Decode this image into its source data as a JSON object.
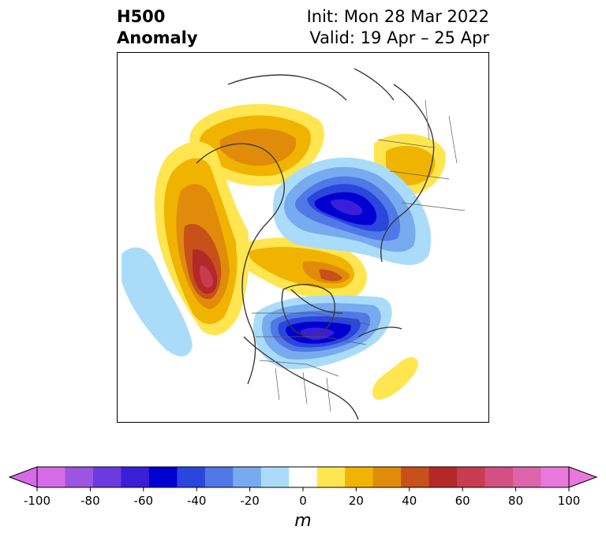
{
  "title": {
    "variable": "H500",
    "field": "Anomaly",
    "init": "Init: Mon 28 Mar 2022",
    "valid": "Valid: 19 Apr – 25 Apr"
  },
  "colorbar": {
    "unit": "m",
    "ticks": [
      "-100",
      "-80",
      "-60",
      "-40",
      "-20",
      "0",
      "20",
      "40",
      "60",
      "80",
      "100"
    ],
    "colors": [
      "#d66be8",
      "#9c55e0",
      "#6c3be0",
      "#3a1ed8",
      "#0000d0",
      "#2a46dc",
      "#5078e6",
      "#78aaf0",
      "#aadcfa",
      "#ffffff",
      "#ffe650",
      "#f0b400",
      "#e08c0a",
      "#c8501a",
      "#b42828",
      "#c83c50",
      "#d25082",
      "#dc64aa",
      "#e878dc"
    ],
    "under_color": "#d66be8",
    "over_color": "#e878dc"
  },
  "map": {
    "region": "North America and Arctic, polar stereographic",
    "features": [
      {
        "name": "positive-anomaly-western-canada",
        "sign": "positive",
        "peak_m": 40
      },
      {
        "name": "positive-anomaly-siberia",
        "sign": "positive",
        "peak_m": 30
      },
      {
        "name": "positive-anomaly-northeast-pacific",
        "sign": "positive",
        "peak_m": 70
      },
      {
        "name": "positive-anomaly-greenland",
        "sign": "positive",
        "peak_m": 50
      },
      {
        "name": "positive-anomaly-western-atlantic",
        "sign": "positive",
        "peak_m": 15
      },
      {
        "name": "negative-anomaly-arctic-ocean",
        "sign": "negative",
        "peak_m": -70
      },
      {
        "name": "negative-anomaly-hudson-bay",
        "sign": "negative",
        "peak_m": -70
      },
      {
        "name": "negative-anomaly-eastern-pacific",
        "sign": "negative",
        "peak_m": -15
      }
    ]
  }
}
